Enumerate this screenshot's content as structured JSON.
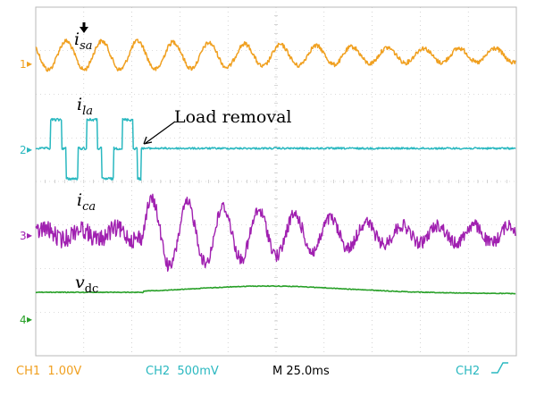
{
  "chart_data": {
    "type": "line",
    "timebase": "M 25.0ms",
    "grid": true,
    "colors": {
      "ch1": "#f0a020",
      "ch2": "#2ab8c0",
      "ch3": "#a020b0",
      "ch4": "#28a028",
      "grid": "#b8b8b8"
    },
    "channels": [
      {
        "marker": "1",
        "label_main": "i",
        "label_sub": "sa",
        "color_key": "ch1"
      },
      {
        "marker": "2",
        "label_main": "i",
        "label_sub": "la",
        "color_key": "ch2"
      },
      {
        "marker": "3",
        "label_main": "i",
        "label_sub": "ca",
        "color_key": "ch3"
      },
      {
        "marker": "4",
        "label_main": "v",
        "label_sub": "dc",
        "color_key": "ch4"
      }
    ],
    "annotation": {
      "text": "Load removal"
    },
    "status_bar": {
      "ch1": "CH1  1.00V",
      "ch2": "CH2  500mV",
      "timebase": "M 25.0ms",
      "trigger": "CH2"
    }
  }
}
